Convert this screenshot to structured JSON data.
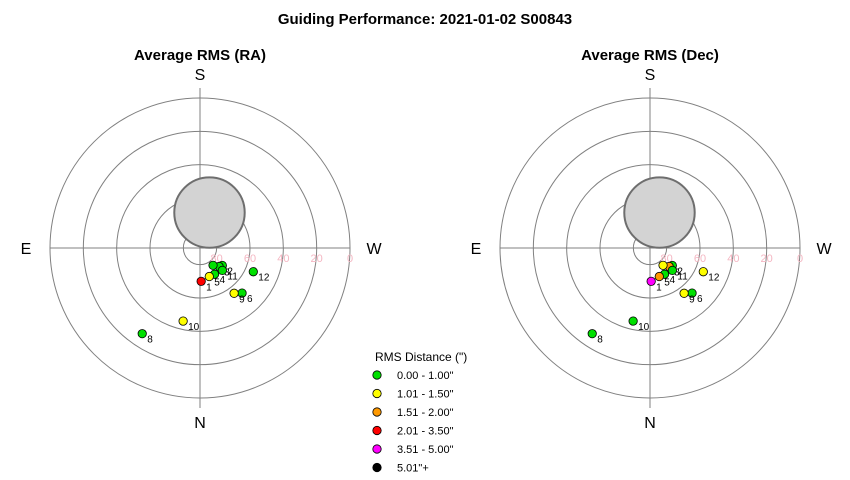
{
  "figure": {
    "title": "Guiding Performance: 2021-01-02 S00843"
  },
  "chart_data": [
    {
      "type": "scatter",
      "projection": "polar",
      "title": "Average RMS (RA)",
      "directions": {
        "top": "S",
        "bottom": "N",
        "left": "E",
        "right": "W"
      },
      "r_axis": {
        "ticks": [
          80,
          60,
          40,
          20,
          0
        ],
        "label_color": "#f4b6c2"
      },
      "rings": [
        10,
        30,
        50,
        70,
        90
      ],
      "points": [
        {
          "label": "1",
          "az": 182,
          "alt": 70,
          "category": 3
        },
        {
          "label": "2",
          "az": 232,
          "alt": 73,
          "category": 0
        },
        {
          "label": "3",
          "az": 226,
          "alt": 74,
          "category": 0
        },
        {
          "label": "4",
          "az": 209,
          "alt": 72,
          "category": 0
        },
        {
          "label": "5",
          "az": 198,
          "alt": 72,
          "category": 1
        },
        {
          "label": "6",
          "az": 223,
          "alt": 53,
          "category": 0
        },
        {
          "label": "7",
          "az": 217,
          "alt": 77,
          "category": 0
        },
        {
          "label": "8",
          "az": 146,
          "alt": 28,
          "category": 0
        },
        {
          "label": "9",
          "az": 217,
          "alt": 56,
          "category": 1
        },
        {
          "label": "10",
          "az": 167,
          "alt": 45,
          "category": 1
        },
        {
          "label": "11",
          "az": 225,
          "alt": 71,
          "category": 0
        },
        {
          "label": "12",
          "az": 246,
          "alt": 55,
          "category": 0
        }
      ],
      "moon": {
        "az": 345,
        "alt": 68,
        "radius_deg": 12.5
      }
    },
    {
      "type": "scatter",
      "projection": "polar",
      "title": "Average RMS (Dec)",
      "directions": {
        "top": "S",
        "bottom": "N",
        "left": "E",
        "right": "W"
      },
      "r_axis": {
        "ticks": [
          80,
          60,
          40,
          20,
          0
        ],
        "label_color": "#f4b6c2"
      },
      "rings": [
        10,
        30,
        50,
        70,
        90
      ],
      "points": [
        {
          "label": "1",
          "az": 182,
          "alt": 70,
          "category": 4
        },
        {
          "label": "2",
          "az": 232,
          "alt": 73,
          "category": 0
        },
        {
          "label": "3",
          "az": 226,
          "alt": 74,
          "category": 2
        },
        {
          "label": "4",
          "az": 209,
          "alt": 72,
          "category": 0
        },
        {
          "label": "5",
          "az": 198,
          "alt": 72,
          "category": 2
        },
        {
          "label": "6",
          "az": 223,
          "alt": 53,
          "category": 0
        },
        {
          "label": "7",
          "az": 217,
          "alt": 77,
          "category": 1
        },
        {
          "label": "8",
          "az": 146,
          "alt": 28,
          "category": 0
        },
        {
          "label": "9",
          "az": 217,
          "alt": 56,
          "category": 1
        },
        {
          "label": "10",
          "az": 167,
          "alt": 45,
          "category": 0
        },
        {
          "label": "11",
          "az": 225,
          "alt": 71,
          "category": 0
        },
        {
          "label": "12",
          "az": 246,
          "alt": 55,
          "category": 1
        }
      ],
      "moon": {
        "az": 345,
        "alt": 68,
        "radius_deg": 12.5
      }
    }
  ],
  "legend": {
    "title": "RMS Distance (\")",
    "entries": [
      {
        "label": "0.00 - 1.00\"",
        "color": "#00e000"
      },
      {
        "label": "1.01 - 1.50\"",
        "color": "#ffff00"
      },
      {
        "label": "1.51 - 2.00\"",
        "color": "#ff9900"
      },
      {
        "label": "2.01 - 3.50\"",
        "color": "#ff0000"
      },
      {
        "label": "3.51 - 5.00\"",
        "color": "#ff00ff"
      },
      {
        "label": "5.01\"+",
        "color": "#000000"
      }
    ]
  },
  "colors": {
    "ring": "#808080",
    "axis": "#808080",
    "moon_fill": "#d3d3d3",
    "moon_stroke": "#6e6e6e"
  }
}
